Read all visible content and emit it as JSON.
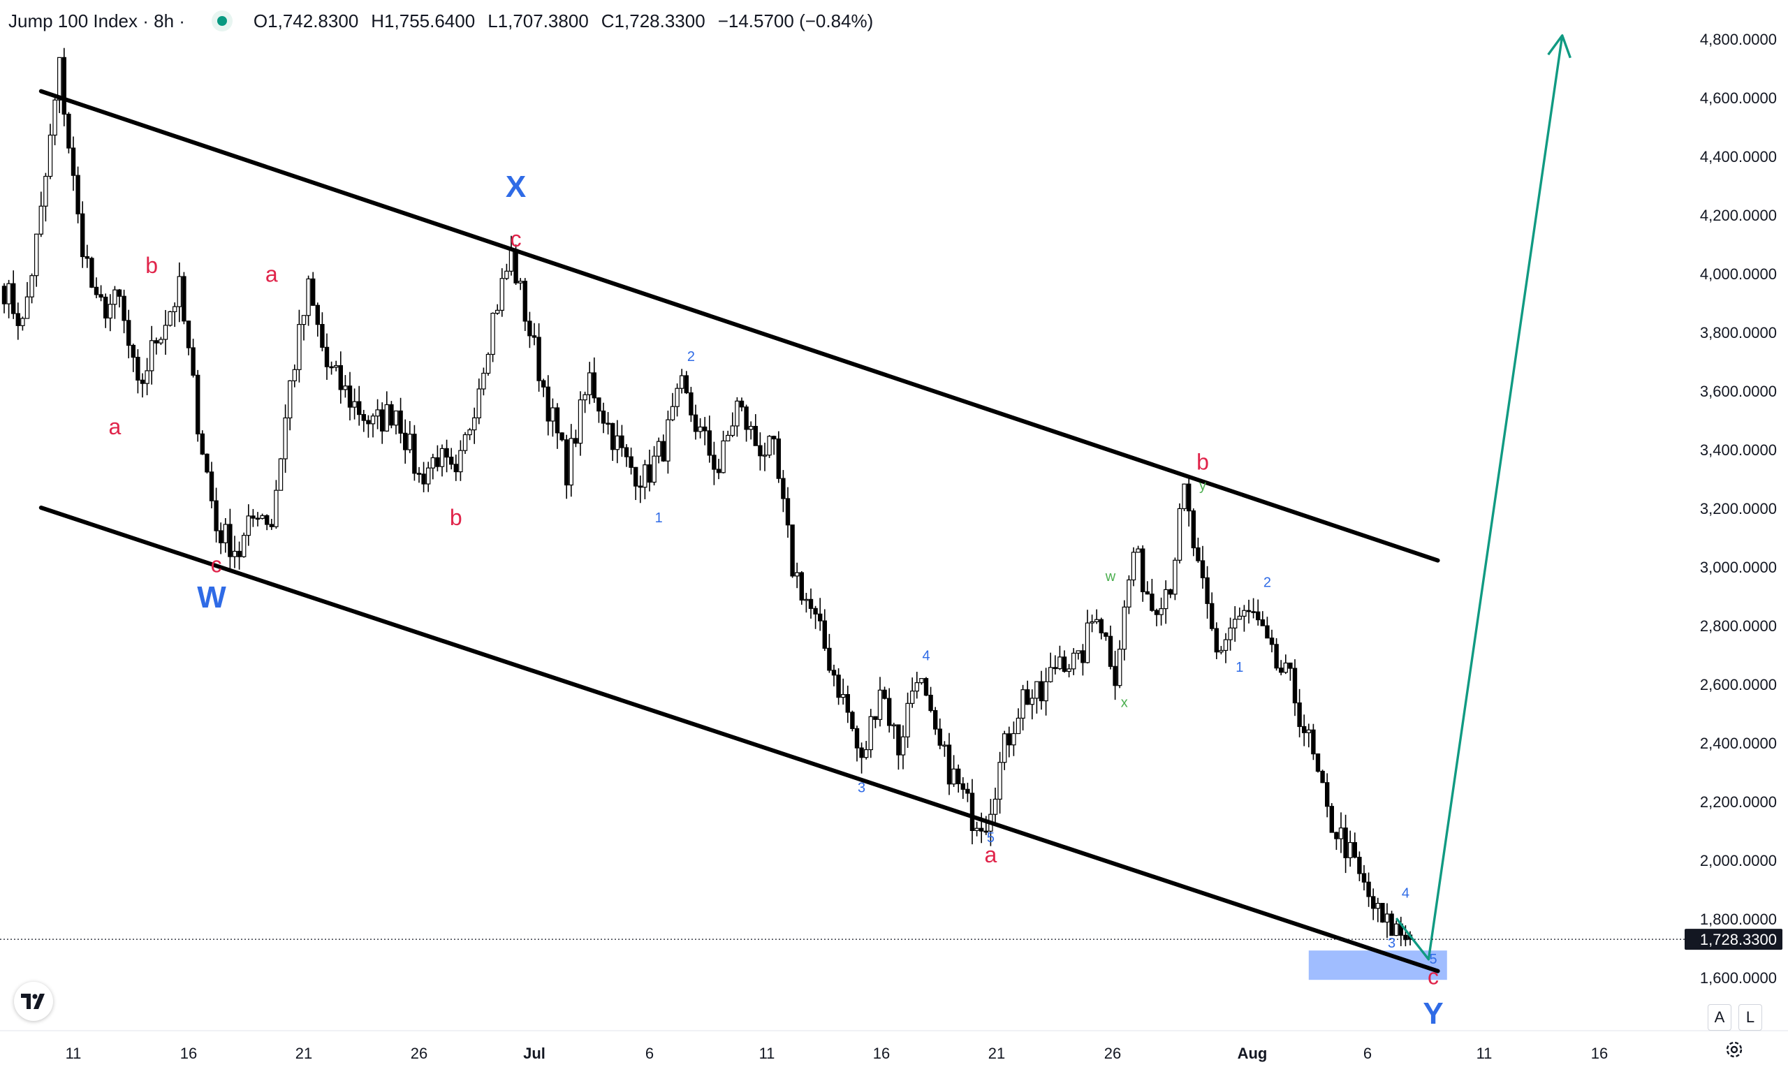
{
  "header": {
    "symbol": "Jump 100 Index · 8h ·",
    "open": "O1,742.8300",
    "high": "H1,755.6400",
    "low": "L1,707.3800",
    "close": "C1,728.3300",
    "change": "−14.5700 (−0.84%)"
  },
  "price_scale": {
    "labels": [
      "4,800.0000",
      "4,600.0000",
      "4,400.0000",
      "4,200.0000",
      "4,000.0000",
      "3,800.0000",
      "3,600.0000",
      "3,400.0000",
      "3,200.0000",
      "3,000.0000",
      "2,800.0000",
      "2,600.0000",
      "2,400.0000",
      "2,200.0000",
      "2,000.0000",
      "1,800.0000",
      "1,600.0000"
    ],
    "current_price_label": "1,728.3300"
  },
  "time_scale": {
    "labels": [
      "11",
      "16",
      "21",
      "26",
      "Jul",
      "6",
      "11",
      "16",
      "21",
      "26",
      "Aug",
      "6",
      "11",
      "16"
    ]
  },
  "buttons": {
    "auto": "A",
    "log": "L"
  },
  "colors": {
    "up_candle": "#ffffff",
    "down_candle": "#000000",
    "wick": "#000000",
    "channel": "#000000",
    "projection_arrow": "#109a82",
    "zone": "#8fb2ff",
    "wave_red": "#e0244a",
    "wave_blue": "#2f6be6",
    "wave_green": "#4caf50"
  },
  "chart_data": {
    "type": "candlestick",
    "symbol": "Jump 100 Index",
    "timeframe": "8h",
    "ylim": [
      1440,
      4960
    ],
    "y_ticks": [
      4800,
      4600,
      4400,
      4200,
      4000,
      3800,
      3600,
      3400,
      3200,
      3000,
      2800,
      2600,
      2400,
      2200,
      2000,
      1800,
      1600
    ],
    "x_ticks": [
      "11",
      "16",
      "21",
      "26",
      "Jul",
      "6",
      "11",
      "16",
      "21",
      "26",
      "Aug",
      "6",
      "11",
      "16"
    ],
    "current_price": 1728.33,
    "ohlc_last": {
      "open": 1742.83,
      "high": 1755.64,
      "low": 1707.38,
      "close": 1728.33,
      "change": -14.57,
      "change_pct": -0.84
    },
    "path_points": [
      {
        "t": 0,
        "p": 3950
      },
      {
        "t": 4,
        "p": 3820
      },
      {
        "t": 8,
        "p": 4200
      },
      {
        "t": 12,
        "p": 4700
      },
      {
        "t": 16,
        "p": 4180
      },
      {
        "t": 20,
        "p": 3880
      },
      {
        "t": 25,
        "p": 3900
      },
      {
        "t": 29,
        "p": 3590
      },
      {
        "t": 33,
        "p": 3780
      },
      {
        "t": 38,
        "p": 3940
      },
      {
        "t": 42,
        "p": 3500
      },
      {
        "t": 46,
        "p": 3130
      },
      {
        "t": 51,
        "p": 3050
      },
      {
        "t": 55,
        "p": 3200
      },
      {
        "t": 58,
        "p": 3150
      },
      {
        "t": 62,
        "p": 3620
      },
      {
        "t": 66,
        "p": 3940
      },
      {
        "t": 70,
        "p": 3680
      },
      {
        "t": 75,
        "p": 3570
      },
      {
        "t": 80,
        "p": 3480
      },
      {
        "t": 85,
        "p": 3540
      },
      {
        "t": 90,
        "p": 3300
      },
      {
        "t": 94,
        "p": 3380
      },
      {
        "t": 98,
        "p": 3280
      },
      {
        "t": 102,
        "p": 3560
      },
      {
        "t": 106,
        "p": 3850
      },
      {
        "t": 110,
        "p": 4060
      },
      {
        "t": 114,
        "p": 3800
      },
      {
        "t": 118,
        "p": 3550
      },
      {
        "t": 122,
        "p": 3330
      },
      {
        "t": 127,
        "p": 3640
      },
      {
        "t": 131,
        "p": 3480
      },
      {
        "t": 135,
        "p": 3350
      },
      {
        "t": 139,
        "p": 3300
      },
      {
        "t": 143,
        "p": 3410
      },
      {
        "t": 147,
        "p": 3600
      },
      {
        "t": 151,
        "p": 3450
      },
      {
        "t": 155,
        "p": 3330
      },
      {
        "t": 159,
        "p": 3550
      },
      {
        "t": 163,
        "p": 3420
      },
      {
        "t": 167,
        "p": 3380
      },
      {
        "t": 171,
        "p": 3000
      },
      {
        "t": 175,
        "p": 2850
      },
      {
        "t": 179,
        "p": 2680
      },
      {
        "t": 183,
        "p": 2500
      },
      {
        "t": 186,
        "p": 2320
      },
      {
        "t": 190,
        "p": 2600
      },
      {
        "t": 194,
        "p": 2380
      },
      {
        "t": 198,
        "p": 2650
      },
      {
        "t": 202,
        "p": 2400
      },
      {
        "t": 206,
        "p": 2280
      },
      {
        "t": 210,
        "p": 2150
      },
      {
        "t": 213,
        "p": 2140
      },
      {
        "t": 217,
        "p": 2380
      },
      {
        "t": 221,
        "p": 2560
      },
      {
        "t": 225,
        "p": 2550
      },
      {
        "t": 229,
        "p": 2700
      },
      {
        "t": 233,
        "p": 2660
      },
      {
        "t": 237,
        "p": 2860
      },
      {
        "t": 241,
        "p": 2640
      },
      {
        "t": 245,
        "p": 3050
      },
      {
        "t": 249,
        "p": 2870
      },
      {
        "t": 253,
        "p": 2950
      },
      {
        "t": 256,
        "p": 3250
      },
      {
        "t": 259,
        "p": 2980
      },
      {
        "t": 263,
        "p": 2700
      },
      {
        "t": 267,
        "p": 2820
      },
      {
        "t": 271,
        "p": 2830
      },
      {
        "t": 275,
        "p": 2680
      },
      {
        "t": 279,
        "p": 2600
      },
      {
        "t": 283,
        "p": 2400
      },
      {
        "t": 287,
        "p": 2150
      },
      {
        "t": 291,
        "p": 2050
      },
      {
        "t": 295,
        "p": 1900
      },
      {
        "t": 299,
        "p": 1780
      },
      {
        "t": 302,
        "p": 1760
      },
      {
        "t": 305,
        "p": 1728
      }
    ],
    "trendlines": [
      {
        "name": "channel-upper",
        "from": {
          "t": 8,
          "p": 4620
        },
        "to": {
          "t": 311,
          "p": 3020
        }
      },
      {
        "name": "channel-lower",
        "from": {
          "t": 8,
          "p": 3200
        },
        "to": {
          "t": 311,
          "p": 1620
        }
      },
      {
        "name": "projection-arrow",
        "points": [
          {
            "t": 302,
            "p": 1800
          },
          {
            "t": 309,
            "p": 1660
          },
          {
            "t": 338,
            "p": 4810
          }
        ]
      }
    ],
    "target_zone": {
      "t_start": 283,
      "t_end": 313,
      "p_low": 1590,
      "p_high": 1690
    },
    "wave_labels": [
      {
        "text": "a",
        "t": 24,
        "p": 3450,
        "color": "red"
      },
      {
        "text": "b",
        "t": 32,
        "p": 4000,
        "color": "red"
      },
      {
        "text": "c",
        "t": 46,
        "p": 2980,
        "color": "red"
      },
      {
        "text": "W",
        "t": 45,
        "p": 2860,
        "color": "blue",
        "size": "big"
      },
      {
        "text": "a",
        "t": 58,
        "p": 3970,
        "color": "red"
      },
      {
        "text": "b",
        "t": 98,
        "p": 3140,
        "color": "red"
      },
      {
        "text": "X",
        "t": 111,
        "p": 4260,
        "color": "blue",
        "size": "big"
      },
      {
        "text": "c",
        "t": 111,
        "p": 4090,
        "color": "red"
      },
      {
        "text": "1",
        "t": 142,
        "p": 3150,
        "color": "blue",
        "size": "small"
      },
      {
        "text": "2",
        "t": 149,
        "p": 3700,
        "color": "blue",
        "size": "small"
      },
      {
        "text": "3",
        "t": 186,
        "p": 2230,
        "color": "blue",
        "size": "small"
      },
      {
        "text": "4",
        "t": 200,
        "p": 2680,
        "color": "blue",
        "size": "small"
      },
      {
        "text": "5",
        "t": 214,
        "p": 2060,
        "color": "blue",
        "size": "small"
      },
      {
        "text": "a",
        "t": 214,
        "p": 1990,
        "color": "red"
      },
      {
        "text": "w",
        "t": 240,
        "p": 2950,
        "color": "green",
        "size": "small"
      },
      {
        "text": "x",
        "t": 243,
        "p": 2520,
        "color": "green",
        "size": "small"
      },
      {
        "text": "y",
        "t": 260,
        "p": 3260,
        "color": "green",
        "size": "small"
      },
      {
        "text": "b",
        "t": 260,
        "p": 3330,
        "color": "red"
      },
      {
        "text": "1",
        "t": 268,
        "p": 2640,
        "color": "blue",
        "size": "small"
      },
      {
        "text": "2",
        "t": 274,
        "p": 2930,
        "color": "blue",
        "size": "small"
      },
      {
        "text": "3",
        "t": 301,
        "p": 1700,
        "color": "blue",
        "size": "small"
      },
      {
        "text": "4",
        "t": 304,
        "p": 1870,
        "color": "blue",
        "size": "small"
      },
      {
        "text": "5",
        "t": 310,
        "p": 1645,
        "color": "blue",
        "size": "small"
      },
      {
        "text": "c",
        "t": 310,
        "p": 1575,
        "color": "red"
      },
      {
        "text": "Y",
        "t": 310,
        "p": 1440,
        "color": "blue",
        "size": "big"
      }
    ]
  }
}
